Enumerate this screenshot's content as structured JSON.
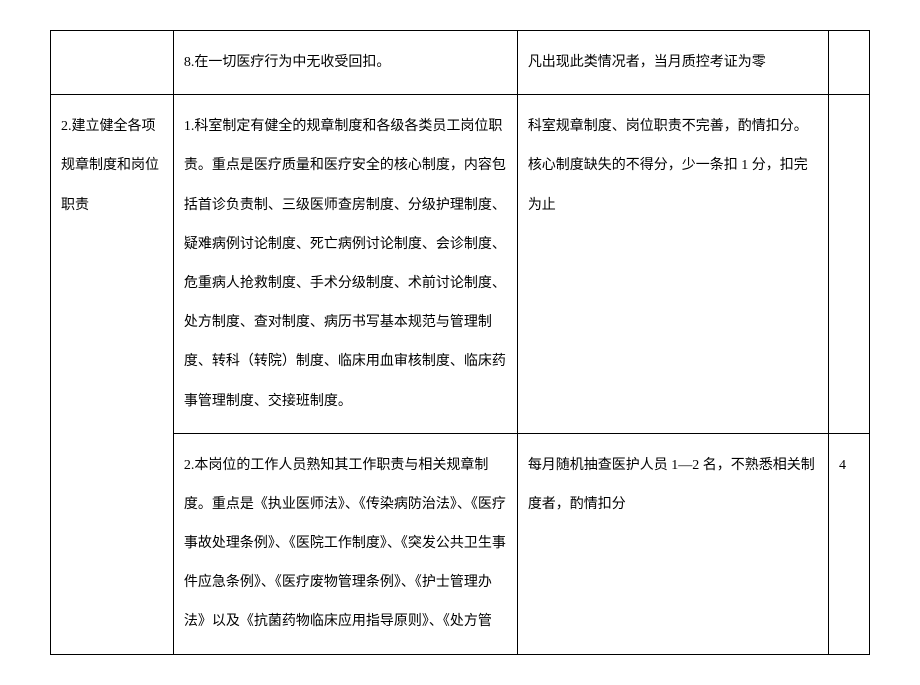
{
  "table": {
    "rows": [
      {
        "col1": "",
        "col2": "8.在一切医疗行为中无收受回扣。",
        "col3": "凡出现此类情况者，当月质控考证为零",
        "col4": ""
      },
      {
        "col1": "2.建立健全各项规章制度和岗位职责",
        "col2": "1.科室制定有健全的规章制度和各级各类员工岗位职责。重点是医疗质量和医疗安全的核心制度，内容包括首诊负责制、三级医师查房制度、分级护理制度、疑难病例讨论制度、死亡病例讨论制度、会诊制度、危重病人抢救制度、手术分级制度、术前讨论制度、处方制度、查对制度、病历书写基本规范与管理制度、转科（转院）制度、临床用血审核制度、临床药事管理制度、交接班制度。",
        "col3": "科室规章制度、岗位职责不完善，酌情扣分。核心制度缺失的不得分，少一条扣 1 分，扣完为止",
        "col4": ""
      },
      {
        "col1_merged": true,
        "col2": "2.本岗位的工作人员熟知其工作职责与相关规章制度。重点是《执业医师法》、《传染病防治法》、《医疗事故处理条例》、《医院工作制度》、《突发公共卫生事件应急条例》、《医疗废物管理条例》、《护士管理办法》以及《抗菌药物临床应用指导原则》、《处方管",
        "col3": "每月随机抽查医护人员 1—2 名，不熟悉相关制度者，酌情扣分",
        "col4": "4"
      }
    ]
  }
}
